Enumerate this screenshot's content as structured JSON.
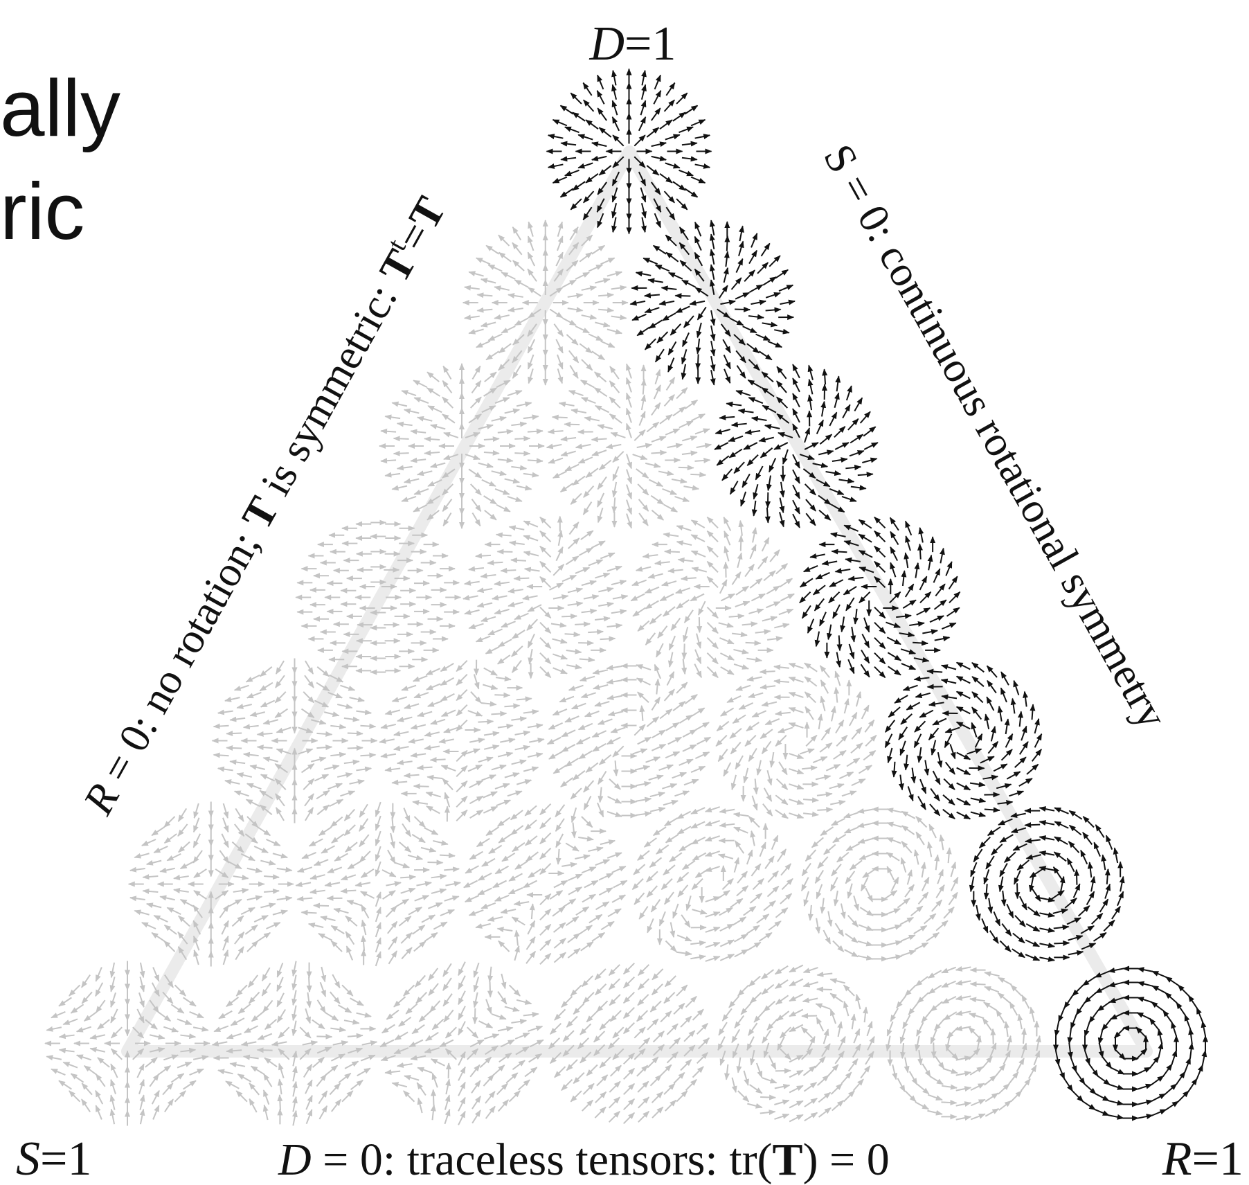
{
  "slide_text": {
    "line1": "ally",
    "line2": "ric"
  },
  "corners": {
    "top": {
      "var": "D",
      "rest": "=1"
    },
    "left": {
      "var": "S",
      "rest": "=1"
    },
    "right": {
      "var": "R",
      "rest": "=1"
    }
  },
  "edges": {
    "right": "S = 0: continuous rotational symmetry",
    "left": {
      "var": "R",
      "p1": " = 0: no rotation; ",
      "b1": "T",
      "p2": " is symmetric: ",
      "b2": "T",
      "sup": "t",
      "eq": "=",
      "b3": "T"
    },
    "bottom": {
      "var": "D",
      "p1": " = 0: traceless tensors: tr(",
      "b1": "T",
      "p2": ") = 0"
    }
  }
}
